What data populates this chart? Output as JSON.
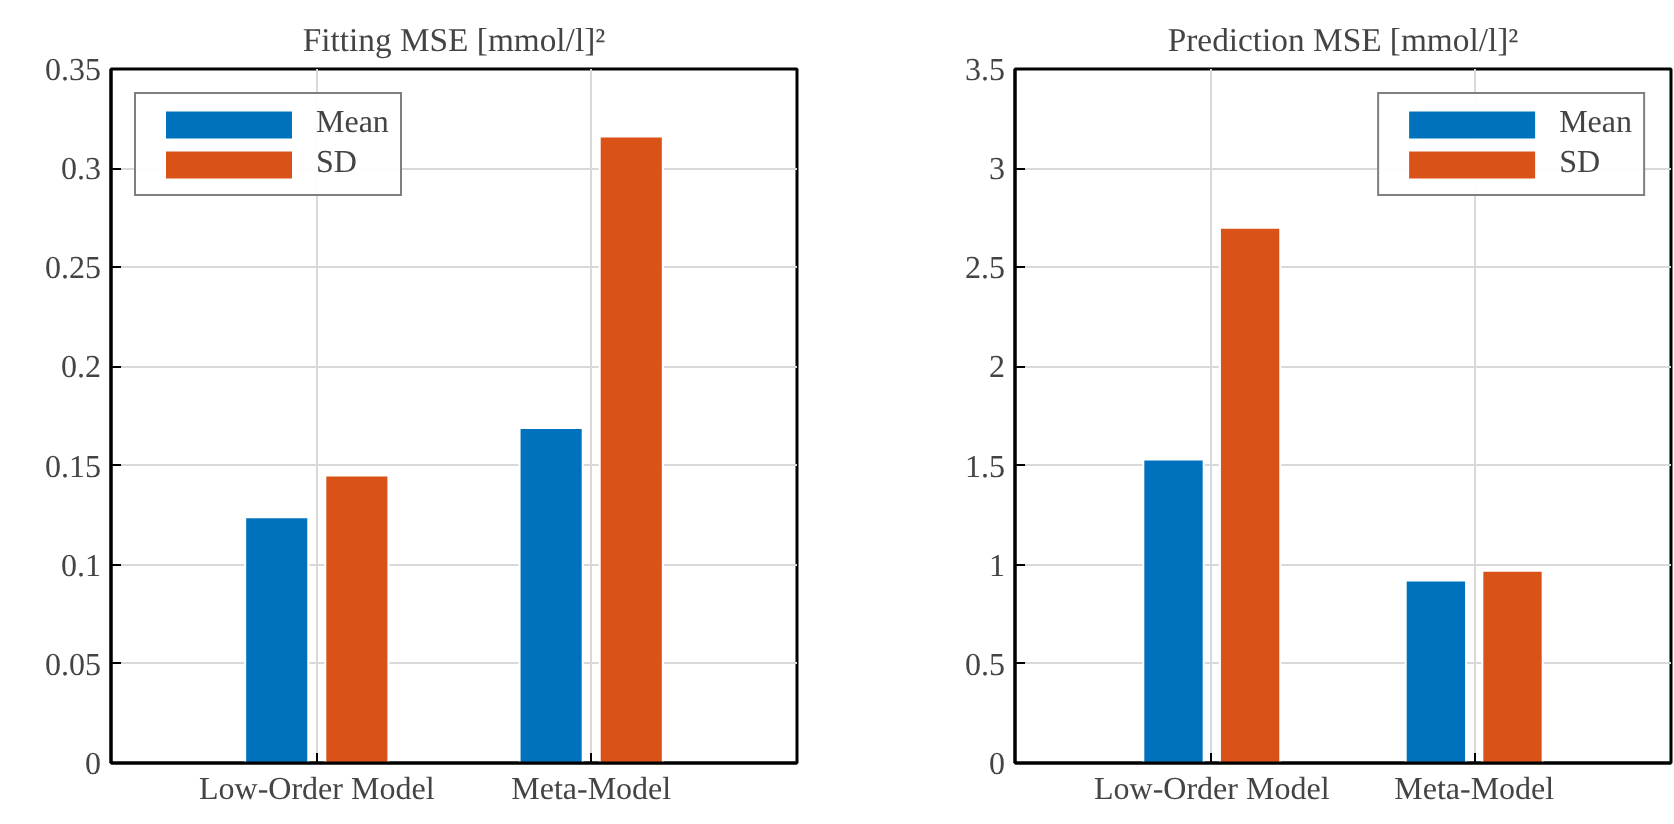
{
  "chart_data": [
    {
      "type": "bar",
      "title": "Fitting MSE [mmol/l]²",
      "categories": [
        "Low-Order Model",
        "Meta-Model"
      ],
      "series": [
        {
          "name": "Mean",
          "color": "#0072bd",
          "values": [
            0.124,
            0.169
          ]
        },
        {
          "name": "SD",
          "color": "#d95319",
          "values": [
            0.145,
            0.316
          ]
        }
      ],
      "ylim": [
        0,
        0.35
      ],
      "yticks": [
        0,
        0.05,
        0.1,
        0.15,
        0.2,
        0.25,
        0.3,
        0.35
      ],
      "grid": true,
      "legend": "top left"
    },
    {
      "type": "bar",
      "title": "Prediction MSE [mmol/l]²",
      "categories": [
        "Low-Order Model",
        "Meta-Model"
      ],
      "series": [
        {
          "name": "Mean",
          "color": "#0072bd",
          "values": [
            1.53,
            0.92
          ]
        },
        {
          "name": "SD",
          "color": "#d95319",
          "values": [
            2.7,
            0.97
          ]
        }
      ],
      "ylim": [
        0,
        3.5
      ],
      "yticks": [
        0,
        0.5,
        1,
        1.5,
        2,
        2.5,
        3,
        3.5
      ],
      "grid": true,
      "legend": "top right"
    }
  ]
}
